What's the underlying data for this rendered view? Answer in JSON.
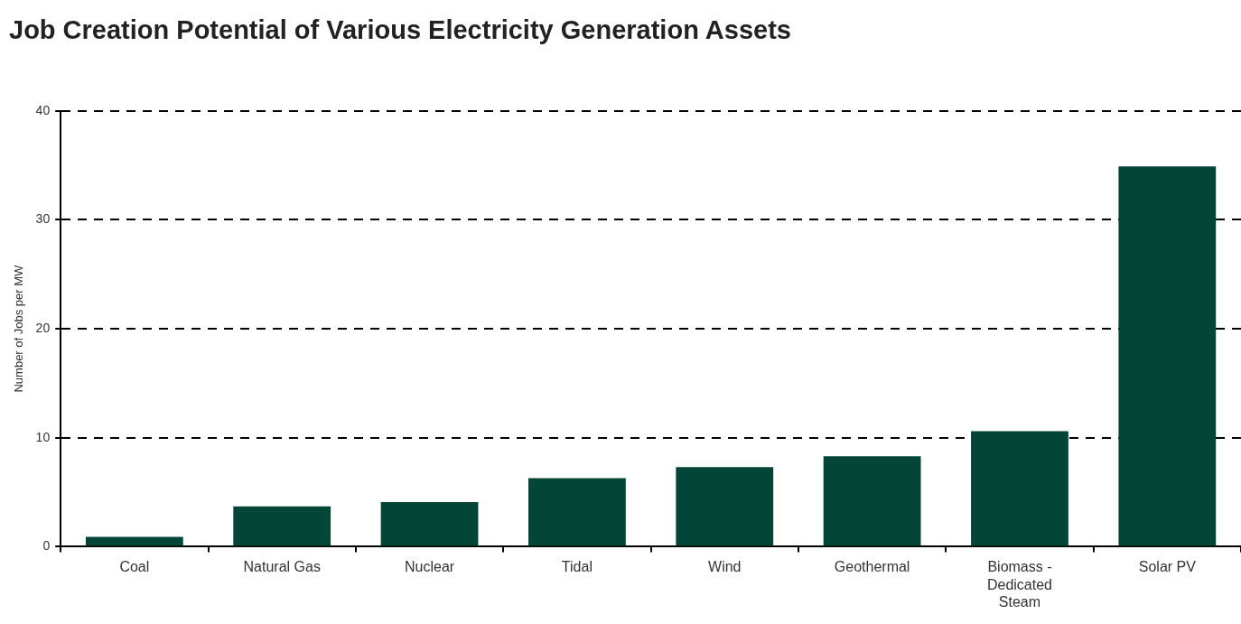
{
  "chart_data": {
    "type": "bar",
    "title": "Job Creation Potential of Various Electricity Generation Assets",
    "ylabel": "Number of Jobs per MW",
    "categories": [
      "Coal",
      "Natural Gas",
      "Nuclear",
      "Tidal",
      "Wind",
      "Geothermal",
      "Biomass - Dedicated Steam",
      "Solar PV"
    ],
    "values": [
      0.9,
      3.7,
      4.1,
      6.3,
      7.3,
      8.3,
      10.6,
      34.9
    ],
    "color": "#034638",
    "ylim": [
      0,
      40
    ],
    "yticks": [
      0,
      10,
      20,
      30,
      40
    ],
    "grid": "y",
    "legend": false
  }
}
